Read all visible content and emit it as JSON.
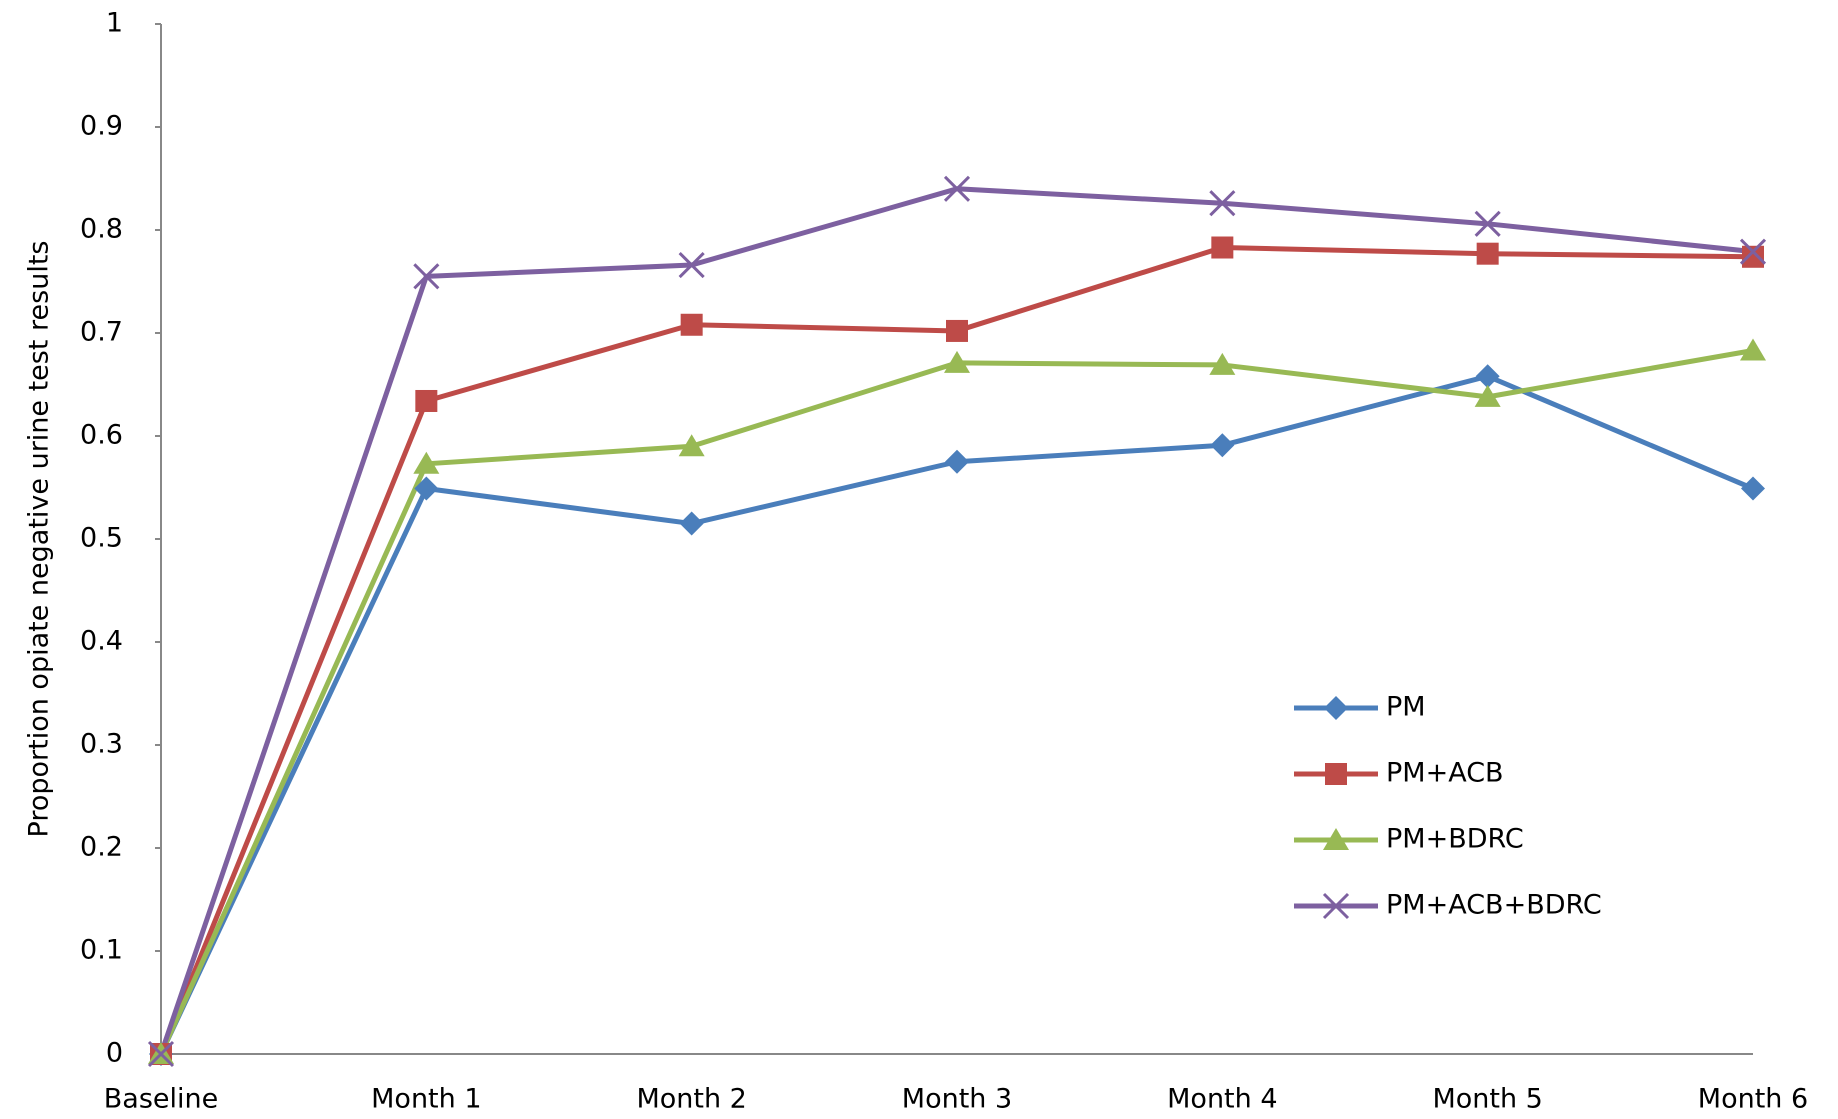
{
  "chart_data": {
    "type": "line",
    "y_label": "Proportion opiate negative urine test results",
    "categories": [
      "Baseline",
      "Month 1",
      "Month 2",
      "Month 3",
      "Month 4",
      "Month 5",
      "Month 6"
    ],
    "series": [
      {
        "name": "PM",
        "color": "#4a7ebb",
        "values": [
          0,
          0.549,
          0.515,
          0.575,
          0.591,
          0.658,
          0.549
        ]
      },
      {
        "name": "PM+ACB",
        "color": "#be4b48",
        "values": [
          0,
          0.634,
          0.708,
          0.702,
          0.783,
          0.777,
          0.774
        ]
      },
      {
        "name": "PM+BDRC",
        "color": "#98b954",
        "values": [
          0,
          0.573,
          0.59,
          0.671,
          0.669,
          0.638,
          0.683
        ]
      },
      {
        "name": "PM+ACB+BDRC",
        "color": "#7d60a0",
        "values": [
          0,
          0.755,
          0.766,
          0.84,
          0.826,
          0.806,
          0.779
        ]
      }
    ],
    "ylim": [
      0,
      1
    ],
    "yticks": [
      0,
      0.1,
      0.2,
      0.3,
      0.4,
      0.5,
      0.6,
      0.7,
      0.8,
      0.9,
      1
    ],
    "grid": false,
    "legend": "lower right"
  }
}
